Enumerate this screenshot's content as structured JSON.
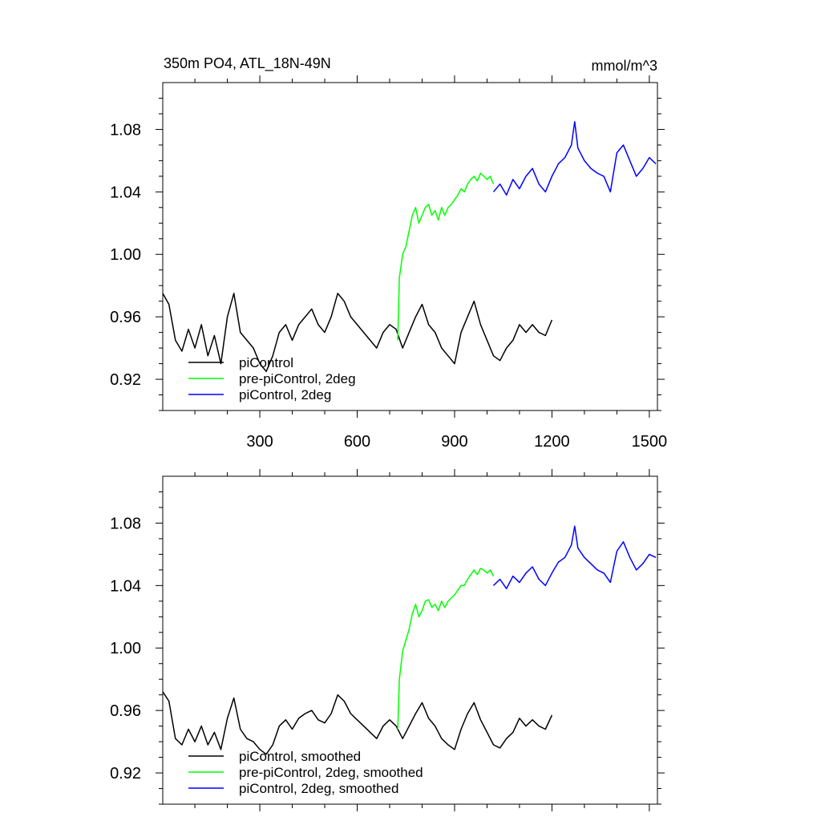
{
  "chart_data": [
    {
      "type": "line",
      "title": "350m PO4, ATL_18N-49N",
      "units": "mmol/m^3",
      "xlim": [
        1,
        1525
      ],
      "ylim": [
        0.9,
        1.11
      ],
      "xticks": [
        300,
        600,
        900,
        1200,
        1500
      ],
      "xtick_labels": [
        "300",
        "600",
        "900",
        "1200",
        "1500"
      ],
      "yticks": [
        0.92,
        0.96,
        1.0,
        1.04,
        1.08
      ],
      "ytick_labels": [
        "0.92",
        "0.96",
        "1.00",
        "1.04",
        "1.08"
      ],
      "grid": false,
      "legend_position": "bottom-left",
      "series": [
        {
          "name": "piControl",
          "color": "#000000",
          "x": [
            1,
            20,
            40,
            60,
            80,
            100,
            120,
            140,
            160,
            180,
            200,
            220,
            240,
            260,
            280,
            300,
            320,
            340,
            360,
            380,
            400,
            420,
            440,
            460,
            480,
            500,
            520,
            540,
            560,
            580,
            600,
            620,
            640,
            660,
            680,
            700,
            720,
            740,
            760,
            780,
            800,
            820,
            840,
            860,
            880,
            900,
            920,
            940,
            960,
            980,
            1000,
            1020,
            1040,
            1060,
            1080,
            1100,
            1120,
            1140,
            1160,
            1180,
            1200
          ],
          "y": [
            0.975,
            0.968,
            0.945,
            0.938,
            0.952,
            0.94,
            0.955,
            0.935,
            0.948,
            0.93,
            0.96,
            0.975,
            0.95,
            0.945,
            0.94,
            0.93,
            0.925,
            0.935,
            0.95,
            0.955,
            0.945,
            0.955,
            0.96,
            0.965,
            0.955,
            0.95,
            0.96,
            0.975,
            0.97,
            0.96,
            0.955,
            0.95,
            0.945,
            0.94,
            0.95,
            0.955,
            0.952,
            0.94,
            0.95,
            0.96,
            0.968,
            0.955,
            0.95,
            0.94,
            0.935,
            0.93,
            0.95,
            0.96,
            0.97,
            0.955,
            0.945,
            0.935,
            0.932,
            0.94,
            0.945,
            0.955,
            0.95,
            0.955,
            0.95,
            0.948,
            0.958
          ]
        },
        {
          "name": "pre-piControl, 2deg",
          "color": "#00ff00",
          "x": [
            725,
            730,
            740,
            750,
            760,
            770,
            780,
            790,
            800,
            810,
            820,
            830,
            840,
            850,
            860,
            870,
            880,
            890,
            900,
            910,
            920,
            930,
            940,
            950,
            960,
            970,
            980,
            990,
            1000,
            1010,
            1020
          ],
          "y": [
            0.945,
            0.985,
            1.0,
            1.005,
            1.015,
            1.025,
            1.03,
            1.02,
            1.025,
            1.03,
            1.032,
            1.025,
            1.028,
            1.022,
            1.03,
            1.025,
            1.03,
            1.032,
            1.035,
            1.038,
            1.042,
            1.04,
            1.045,
            1.048,
            1.05,
            1.047,
            1.052,
            1.05,
            1.048,
            1.05,
            1.045
          ]
        },
        {
          "name": "piControl, 2deg",
          "color": "#0000ff",
          "x": [
            1020,
            1040,
            1060,
            1080,
            1100,
            1120,
            1140,
            1160,
            1180,
            1200,
            1220,
            1240,
            1260,
            1270,
            1280,
            1300,
            1320,
            1340,
            1360,
            1380,
            1400,
            1420,
            1440,
            1460,
            1480,
            1500,
            1520
          ],
          "y": [
            1.04,
            1.045,
            1.038,
            1.048,
            1.042,
            1.05,
            1.055,
            1.045,
            1.04,
            1.05,
            1.058,
            1.062,
            1.07,
            1.085,
            1.068,
            1.06,
            1.055,
            1.052,
            1.05,
            1.04,
            1.065,
            1.07,
            1.06,
            1.05,
            1.055,
            1.062,
            1.058
          ]
        }
      ]
    },
    {
      "type": "line",
      "title": "",
      "xlim": [
        1,
        1525
      ],
      "ylim": [
        0.9,
        1.11
      ],
      "xticks": [
        300,
        600,
        900,
        1200,
        1500
      ],
      "yticks": [
        0.92,
        0.96,
        1.0,
        1.04,
        1.08
      ],
      "ytick_labels": [
        "0.92",
        "0.96",
        "1.00",
        "1.04",
        "1.08"
      ],
      "grid": false,
      "legend_position": "bottom-left",
      "series": [
        {
          "name": "piControl, smoothed",
          "color": "#000000",
          "x": [
            1,
            20,
            40,
            60,
            80,
            100,
            120,
            140,
            160,
            180,
            200,
            220,
            240,
            260,
            280,
            300,
            320,
            340,
            360,
            380,
            400,
            420,
            440,
            460,
            480,
            500,
            520,
            540,
            560,
            580,
            600,
            620,
            640,
            660,
            680,
            700,
            720,
            740,
            760,
            780,
            800,
            820,
            840,
            860,
            880,
            900,
            920,
            940,
            960,
            980,
            1000,
            1020,
            1040,
            1060,
            1080,
            1100,
            1120,
            1140,
            1160,
            1180,
            1200
          ],
          "y": [
            0.972,
            0.966,
            0.942,
            0.938,
            0.948,
            0.94,
            0.95,
            0.938,
            0.946,
            0.935,
            0.955,
            0.968,
            0.948,
            0.942,
            0.94,
            0.935,
            0.932,
            0.938,
            0.95,
            0.954,
            0.948,
            0.955,
            0.958,
            0.96,
            0.954,
            0.952,
            0.958,
            0.97,
            0.966,
            0.958,
            0.954,
            0.95,
            0.946,
            0.942,
            0.95,
            0.954,
            0.95,
            0.942,
            0.95,
            0.958,
            0.965,
            0.955,
            0.95,
            0.942,
            0.938,
            0.935,
            0.948,
            0.958,
            0.965,
            0.954,
            0.946,
            0.938,
            0.936,
            0.942,
            0.946,
            0.955,
            0.95,
            0.954,
            0.95,
            0.948,
            0.957
          ]
        },
        {
          "name": "pre-piControl, 2deg, smoothed",
          "color": "#00ff00",
          "x": [
            725,
            730,
            740,
            750,
            760,
            770,
            780,
            790,
            800,
            810,
            820,
            830,
            840,
            850,
            860,
            870,
            880,
            890,
            900,
            910,
            920,
            930,
            940,
            950,
            960,
            970,
            980,
            990,
            1000,
            1010,
            1020
          ],
          "y": [
            0.948,
            0.98,
            0.998,
            1.005,
            1.012,
            1.022,
            1.028,
            1.02,
            1.024,
            1.03,
            1.031,
            1.026,
            1.028,
            1.024,
            1.03,
            1.026,
            1.03,
            1.032,
            1.034,
            1.037,
            1.04,
            1.04,
            1.044,
            1.047,
            1.05,
            1.047,
            1.051,
            1.05,
            1.048,
            1.05,
            1.046
          ]
        },
        {
          "name": "piControl, 2deg, smoothed",
          "color": "#0000ff",
          "x": [
            1020,
            1040,
            1060,
            1080,
            1100,
            1120,
            1140,
            1160,
            1180,
            1200,
            1220,
            1240,
            1260,
            1270,
            1280,
            1300,
            1320,
            1340,
            1360,
            1380,
            1400,
            1420,
            1440,
            1460,
            1480,
            1500,
            1520
          ],
          "y": [
            1.04,
            1.044,
            1.038,
            1.046,
            1.042,
            1.048,
            1.052,
            1.044,
            1.04,
            1.048,
            1.055,
            1.058,
            1.066,
            1.078,
            1.064,
            1.058,
            1.054,
            1.05,
            1.048,
            1.042,
            1.062,
            1.068,
            1.058,
            1.05,
            1.054,
            1.06,
            1.058
          ]
        }
      ]
    }
  ]
}
